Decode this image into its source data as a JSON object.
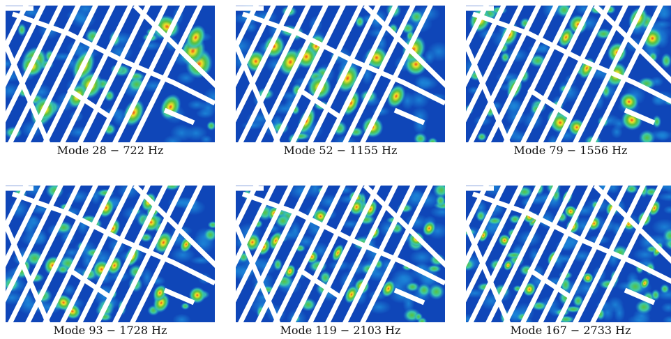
{
  "panels": [
    {
      "caption": "Mode 28 − 722 Hz"
    },
    {
      "caption": "Mode 52 − 1155 Hz"
    },
    {
      "caption": "Mode 79 − 1556 Hz"
    },
    {
      "caption": "Mode 93 − 1728 Hz"
    },
    {
      "caption": "Mode 119 − 2103 Hz"
    },
    {
      "caption": "Mode 167 − 2733 Hz"
    }
  ],
  "colors": {
    "background": "#0f46b8",
    "low": "#1c86d8",
    "mid": "#3cc8a8",
    "green": "#58c040",
    "high": "#f2e02a",
    "peak": "#e8501c",
    "ribs": "#ffffff"
  }
}
